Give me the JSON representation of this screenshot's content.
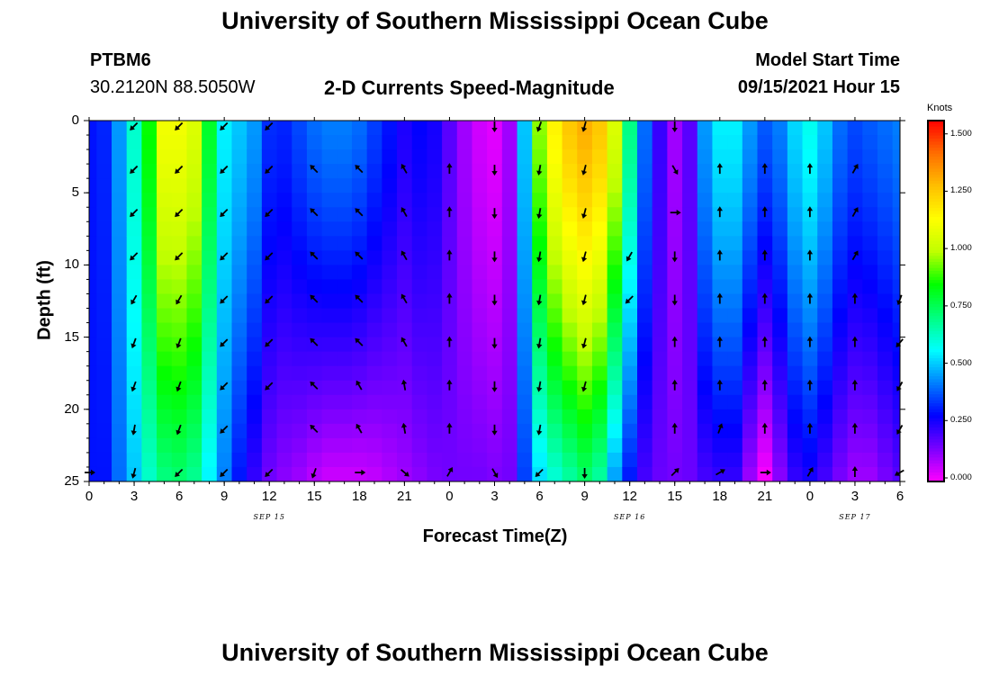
{
  "page": {
    "title": "University of Southern Mississippi Ocean Cube",
    "bottom_title": "University of Southern Mississippi Ocean Cube",
    "station": "PTBM6",
    "coordinates": "30.2120N  88.5050W",
    "plot_title": "2-D Currents Speed-Magnitude",
    "model_label": "Model Start Time",
    "model_time": "09/15/2021 Hour 15"
  },
  "colors": {
    "ramp": [
      "#ff00ff",
      "#7a00ff",
      "#0000ff",
      "#0080ff",
      "#00ffff",
      "#00ff80",
      "#00ff00",
      "#bfff00",
      "#ffff00",
      "#ffbf00",
      "#ff6e00",
      "#ff0000"
    ],
    "arrow": "#000000"
  },
  "chart_data": {
    "type": "heatmap",
    "title": "2-D Currents Speed-Magnitude",
    "xlabel": "Forecast Time(Z)",
    "ylabel": "Depth (ft)",
    "x_tick_values": [
      0,
      3,
      6,
      9,
      12,
      15,
      18,
      21,
      24,
      27,
      30,
      33,
      36,
      39,
      42,
      45,
      48,
      51,
      54
    ],
    "x_tick_labels": [
      "0",
      "3",
      "6",
      "9",
      "12",
      "15",
      "18",
      "21",
      "0",
      "3",
      "6",
      "9",
      "12",
      "15",
      "18",
      "21",
      "0",
      "3",
      "6"
    ],
    "x_date_labels": [
      {
        "x": 12,
        "label": "SEP 15"
      },
      {
        "x": 36,
        "label": "SEP 16"
      },
      {
        "x": 51,
        "label": "SEP 17"
      }
    ],
    "xlim": [
      0,
      54
    ],
    "y_ticks": [
      0,
      5,
      10,
      15,
      20,
      25
    ],
    "ylim": [
      0,
      25
    ],
    "colorbar": {
      "label": "Knots",
      "ticks": [
        0.0,
        0.25,
        0.5,
        0.75,
        1.0,
        1.25,
        1.5
      ],
      "tick_labels": [
        "0.000",
        "0.250",
        "0.500",
        "0.750",
        "1.000",
        "1.250",
        "1.500"
      ],
      "range": [
        0,
        1.55
      ]
    },
    "speed_profiles": [
      {
        "t": 0,
        "surface": 0.3,
        "bottom": 0.3
      },
      {
        "t": 1,
        "surface": 0.32,
        "bottom": 0.3
      },
      {
        "t": 2,
        "surface": 0.45,
        "bottom": 0.4
      },
      {
        "t": 3,
        "surface": 0.62,
        "bottom": 0.5
      },
      {
        "t": 4,
        "surface": 0.85,
        "bottom": 0.62
      },
      {
        "t": 5,
        "surface": 1.1,
        "bottom": 0.7
      },
      {
        "t": 6,
        "surface": 1.1,
        "bottom": 0.72
      },
      {
        "t": 7,
        "surface": 1.05,
        "bottom": 0.68
      },
      {
        "t": 8,
        "surface": 0.8,
        "bottom": 0.55
      },
      {
        "t": 9,
        "surface": 0.55,
        "bottom": 0.42
      },
      {
        "t": 10,
        "surface": 0.5,
        "bottom": 0.3
      },
      {
        "t": 11,
        "surface": 0.45,
        "bottom": 0.22
      },
      {
        "t": 12,
        "surface": 0.33,
        "bottom": 0.15
      },
      {
        "t": 13,
        "surface": 0.32,
        "bottom": 0.12
      },
      {
        "t": 14,
        "surface": 0.36,
        "bottom": 0.1
      },
      {
        "t": 15,
        "surface": 0.4,
        "bottom": 0.07
      },
      {
        "t": 16,
        "surface": 0.42,
        "bottom": 0.05
      },
      {
        "t": 17,
        "surface": 0.42,
        "bottom": 0.05
      },
      {
        "t": 18,
        "surface": 0.4,
        "bottom": 0.05
      },
      {
        "t": 19,
        "surface": 0.35,
        "bottom": 0.06
      },
      {
        "t": 20,
        "surface": 0.3,
        "bottom": 0.08
      },
      {
        "t": 21,
        "surface": 0.25,
        "bottom": 0.1
      },
      {
        "t": 22,
        "surface": 0.28,
        "bottom": 0.12
      },
      {
        "t": 23,
        "surface": 0.26,
        "bottom": 0.14
      },
      {
        "t": 24,
        "surface": 0.18,
        "bottom": 0.15
      },
      {
        "t": 25,
        "surface": 0.1,
        "bottom": 0.15
      },
      {
        "t": 26,
        "surface": 0.05,
        "bottom": 0.15
      },
      {
        "t": 27,
        "surface": 0.03,
        "bottom": 0.14
      },
      {
        "t": 28,
        "surface": 0.1,
        "bottom": 0.15
      },
      {
        "t": 29,
        "surface": 0.5,
        "bottom": 0.35
      },
      {
        "t": 30,
        "surface": 0.95,
        "bottom": 0.52
      },
      {
        "t": 31,
        "surface": 1.15,
        "bottom": 0.6
      },
      {
        "t": 32,
        "surface": 1.25,
        "bottom": 0.66
      },
      {
        "t": 33,
        "surface": 1.3,
        "bottom": 0.72
      },
      {
        "t": 34,
        "surface": 1.25,
        "bottom": 0.66
      },
      {
        "t": 35,
        "surface": 1.05,
        "bottom": 0.45
      },
      {
        "t": 36,
        "surface": 0.7,
        "bottom": 0.3
      },
      {
        "t": 37,
        "surface": 0.4,
        "bottom": 0.2
      },
      {
        "t": 38,
        "surface": 0.22,
        "bottom": 0.16
      },
      {
        "t": 39,
        "surface": 0.1,
        "bottom": 0.15
      },
      {
        "t": 40,
        "surface": 0.18,
        "bottom": 0.16
      },
      {
        "t": 41,
        "surface": 0.45,
        "bottom": 0.2
      },
      {
        "t": 42,
        "surface": 0.55,
        "bottom": 0.22
      },
      {
        "t": 43,
        "surface": 0.55,
        "bottom": 0.22
      },
      {
        "t": 44,
        "surface": 0.45,
        "bottom": 0.1
      },
      {
        "t": 45,
        "surface": 0.38,
        "bottom": 0.0
      },
      {
        "t": 46,
        "surface": 0.42,
        "bottom": 0.12
      },
      {
        "t": 47,
        "surface": 0.52,
        "bottom": 0.22
      },
      {
        "t": 48,
        "surface": 0.58,
        "bottom": 0.25
      },
      {
        "t": 49,
        "surface": 0.5,
        "bottom": 0.2
      },
      {
        "t": 50,
        "surface": 0.4,
        "bottom": 0.14
      },
      {
        "t": 51,
        "surface": 0.36,
        "bottom": 0.1
      },
      {
        "t": 52,
        "surface": 0.38,
        "bottom": 0.1
      },
      {
        "t": 53,
        "surface": 0.4,
        "bottom": 0.14
      },
      {
        "t": 54,
        "surface": 0.42,
        "bottom": 0.18
      }
    ],
    "vector_times": [
      0,
      3,
      6,
      9,
      12,
      15,
      18,
      21,
      24,
      27,
      30,
      33,
      36,
      39,
      42,
      45,
      48,
      51,
      54
    ],
    "vector_depths": [
      0,
      3,
      6,
      9,
      12,
      15,
      18,
      21,
      24
    ],
    "vector_directions_deg": [
      [
        null,
        225,
        225,
        225,
        225,
        null,
        null,
        null,
        null,
        180,
        200,
        195,
        null,
        180,
        null,
        null,
        null,
        null,
        null
      ],
      [
        null,
        225,
        225,
        225,
        225,
        315,
        315,
        330,
        0,
        180,
        190,
        195,
        null,
        150,
        0,
        0,
        0,
        30,
        null
      ],
      [
        null,
        225,
        225,
        225,
        225,
        315,
        315,
        330,
        0,
        180,
        190,
        195,
        null,
        90,
        0,
        0,
        0,
        30,
        null
      ],
      [
        null,
        225,
        225,
        225,
        225,
        315,
        315,
        330,
        0,
        180,
        190,
        195,
        210,
        180,
        0,
        0,
        0,
        30,
        null
      ],
      [
        null,
        210,
        210,
        225,
        225,
        315,
        315,
        330,
        0,
        180,
        190,
        195,
        225,
        180,
        0,
        0,
        0,
        0,
        200
      ],
      [
        null,
        200,
        200,
        225,
        225,
        315,
        315,
        330,
        0,
        180,
        190,
        195,
        null,
        0,
        0,
        0,
        0,
        0,
        220
      ],
      [
        null,
        200,
        200,
        225,
        225,
        315,
        330,
        350,
        0,
        180,
        190,
        195,
        null,
        0,
        0,
        0,
        0,
        0,
        210
      ],
      [
        null,
        190,
        200,
        225,
        null,
        315,
        330,
        350,
        0,
        180,
        190,
        null,
        null,
        0,
        20,
        0,
        0,
        0,
        210
      ],
      [
        90,
        195,
        225,
        225,
        225,
        200,
        90,
        130,
        30,
        150,
        225,
        180,
        null,
        45,
        60,
        90,
        30,
        0,
        240
      ]
    ]
  }
}
